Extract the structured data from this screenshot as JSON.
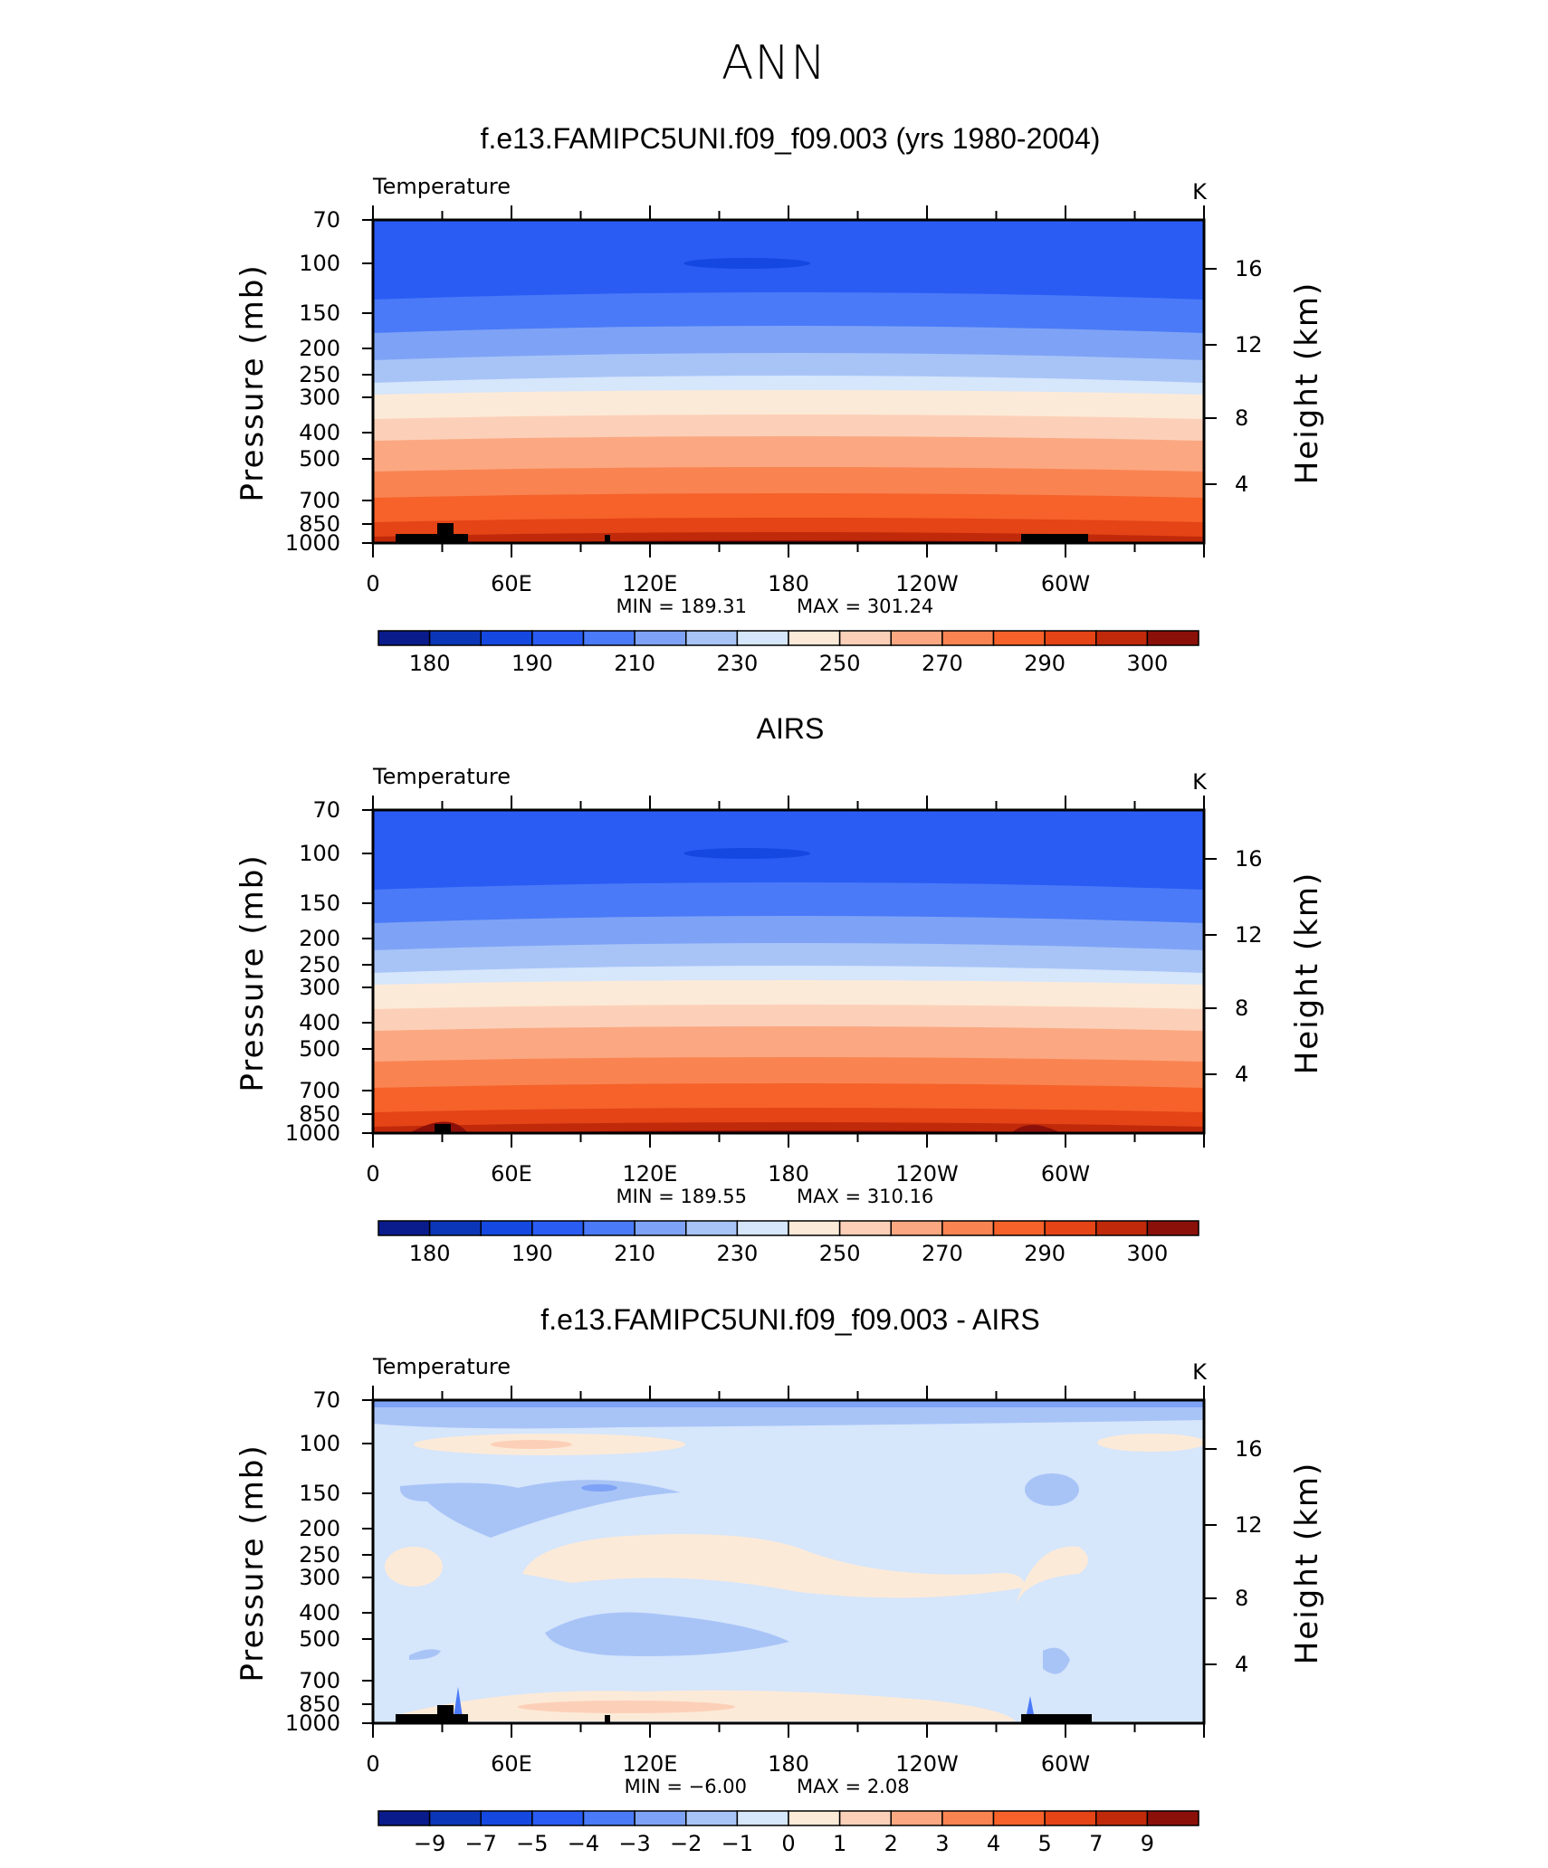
{
  "page": {
    "title": "ANN"
  },
  "pressure_ticks": [
    "70",
    "100",
    "150",
    "200",
    "250",
    "300",
    "400",
    "500",
    "700",
    "850",
    "1000"
  ],
  "height_ticks": [
    "16",
    "12",
    "8",
    "4"
  ],
  "lon_ticks": [
    "0",
    "60E",
    "120E",
    "180",
    "120W",
    "60W"
  ],
  "y_left_label": "Pressure (mb)",
  "y_right_label": "Height (km)",
  "panels": [
    {
      "title": "f.e13.FAMIPC5UNI.f09_f09.003 (yrs 1980-2004)",
      "left_label": "Temperature",
      "right_label": "K",
      "min_text": "MIN  =  189.31",
      "max_text": "MAX  =  301.24",
      "colorbar_labels": [
        "180",
        "190",
        "210",
        "230",
        "250",
        "270",
        "290",
        "300"
      ]
    },
    {
      "title": "AIRS",
      "left_label": "Temperature",
      "right_label": "K",
      "min_text": "MIN  =  189.55",
      "max_text": "MAX  =  310.16",
      "colorbar_labels": [
        "180",
        "190",
        "210",
        "230",
        "250",
        "270",
        "290",
        "300"
      ]
    },
    {
      "title": "f.e13.FAMIPC5UNI.f09_f09.003 - AIRS",
      "left_label": "Temperature",
      "right_label": "K",
      "min_text": "MIN  =   −6.00",
      "max_text": "MAX  =    2.08",
      "colorbar_labels": [
        "−9",
        "−7",
        "−5",
        "−4",
        "−3",
        "−2",
        "−1",
        "0",
        "1",
        "2",
        "3",
        "4",
        "5",
        "7",
        "9"
      ]
    }
  ],
  "colors": {
    "scale16": [
      "#0a1c8c",
      "#0c36b8",
      "#1448e0",
      "#2a5cf4",
      "#4a7af8",
      "#7ea3f6",
      "#a8c4f7",
      "#d6e6fb",
      "#fcead8",
      "#fcd0b8",
      "#fba882",
      "#f98452",
      "#f6622a",
      "#e44416",
      "#c02a0a",
      "#8c100a"
    ],
    "land": "#000000"
  },
  "chart_data": [
    {
      "type": "heatmap",
      "title": "f.e13.FAMIPC5UNI.f09_f09.003 (yrs 1980-2004)",
      "variable": "Temperature",
      "units": "K",
      "x_ticks": [
        "0",
        "60E",
        "120E",
        "180",
        "120W",
        "60W"
      ],
      "y_ticks_pressure_mb": [
        70,
        100,
        150,
        200,
        250,
        300,
        400,
        500,
        700,
        850,
        1000
      ],
      "y_ticks_height_km": [
        16,
        12,
        8,
        4
      ],
      "min": 189.31,
      "max": 301.24,
      "contour_levels": [
        180,
        185,
        190,
        200,
        210,
        220,
        230,
        240,
        250,
        260,
        270,
        280,
        290,
        295,
        300
      ],
      "colorbar_labels": [
        180,
        190,
        210,
        230,
        250,
        270,
        290,
        300
      ]
    },
    {
      "type": "heatmap",
      "title": "AIRS",
      "variable": "Temperature",
      "units": "K",
      "x_ticks": [
        "0",
        "60E",
        "120E",
        "180",
        "120W",
        "60W"
      ],
      "y_ticks_pressure_mb": [
        70,
        100,
        150,
        200,
        250,
        300,
        400,
        500,
        700,
        850,
        1000
      ],
      "y_ticks_height_km": [
        16,
        12,
        8,
        4
      ],
      "min": 189.55,
      "max": 310.16,
      "contour_levels": [
        180,
        185,
        190,
        200,
        210,
        220,
        230,
        240,
        250,
        260,
        270,
        280,
        290,
        295,
        300
      ],
      "colorbar_labels": [
        180,
        190,
        210,
        230,
        250,
        270,
        290,
        300
      ]
    },
    {
      "type": "heatmap",
      "title": "f.e13.FAMIPC5UNI.f09_f09.003 - AIRS",
      "variable": "Temperature",
      "units": "K",
      "x_ticks": [
        "0",
        "60E",
        "120E",
        "180",
        "120W",
        "60W"
      ],
      "y_ticks_pressure_mb": [
        70,
        100,
        150,
        200,
        250,
        300,
        400,
        500,
        700,
        850,
        1000
      ],
      "y_ticks_height_km": [
        16,
        12,
        8,
        4
      ],
      "min": -6.0,
      "max": 2.08,
      "contour_levels": [
        -9,
        -7,
        -5,
        -4,
        -3,
        -2,
        -1,
        0,
        1,
        2,
        3,
        4,
        5,
        7,
        9
      ],
      "colorbar_labels": [
        -9,
        -7,
        -5,
        -4,
        -3,
        -2,
        -1,
        0,
        1,
        2,
        3,
        4,
        5,
        7,
        9
      ]
    }
  ]
}
